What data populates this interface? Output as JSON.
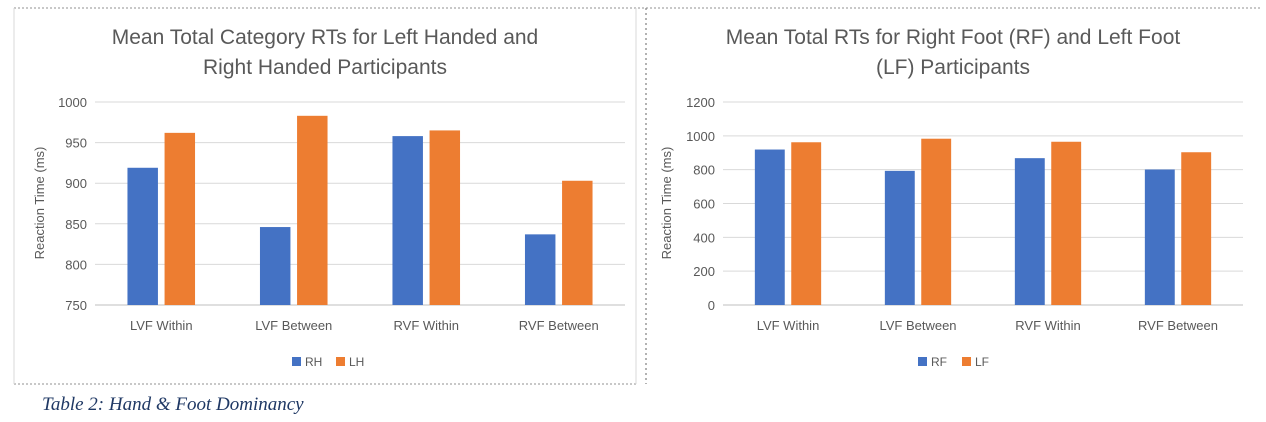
{
  "caption": "Table 2: Hand & Foot Dominancy",
  "colors": {
    "series1": "#4472c4",
    "series2": "#ed7d31",
    "grid": "#d9d9d9",
    "text": "#595959",
    "border": "#a6a6a6"
  },
  "chart_data": [
    {
      "type": "bar",
      "title": "Mean Total Category RTs for Left Handed and",
      "subtitle": "Right Handed Participants",
      "ylabel": "Reaction Time (ms)",
      "xlabel": "",
      "categories": [
        "LVF Within",
        "LVF Between",
        "RVF Within",
        "RVF Between"
      ],
      "series": [
        {
          "name": "RH",
          "values": [
            919,
            846,
            958,
            837
          ]
        },
        {
          "name": "LH",
          "values": [
            962,
            983,
            965,
            903
          ]
        }
      ],
      "ylim": [
        750,
        1000
      ],
      "yticks": [
        750,
        800,
        850,
        900,
        950,
        1000
      ],
      "ytick_labels": [
        "750",
        "800",
        "850",
        "900",
        "950",
        "1000"
      ],
      "grid": true,
      "legend_position": "bottom"
    },
    {
      "type": "bar",
      "title": "Mean Total RTs for Right Foot (RF) and Left Foot",
      "subtitle": "(LF) Participants",
      "ylabel": "Reaction Time (ms)",
      "xlabel": "",
      "categories": [
        "LVF Within",
        "LVF Between",
        "RVF Within",
        "RVF Between"
      ],
      "series": [
        {
          "name": "RF",
          "values": [
            919,
            793,
            868,
            801
          ]
        },
        {
          "name": "LF",
          "values": [
            962,
            983,
            965,
            903
          ]
        }
      ],
      "ylim": [
        0,
        1200
      ],
      "yticks": [
        0,
        200,
        400,
        600,
        800,
        1000,
        1200
      ],
      "ytick_labels": [
        "0",
        "200",
        "400",
        "600",
        "800",
        "1000",
        "1200"
      ],
      "grid": true,
      "legend_position": "bottom"
    }
  ]
}
